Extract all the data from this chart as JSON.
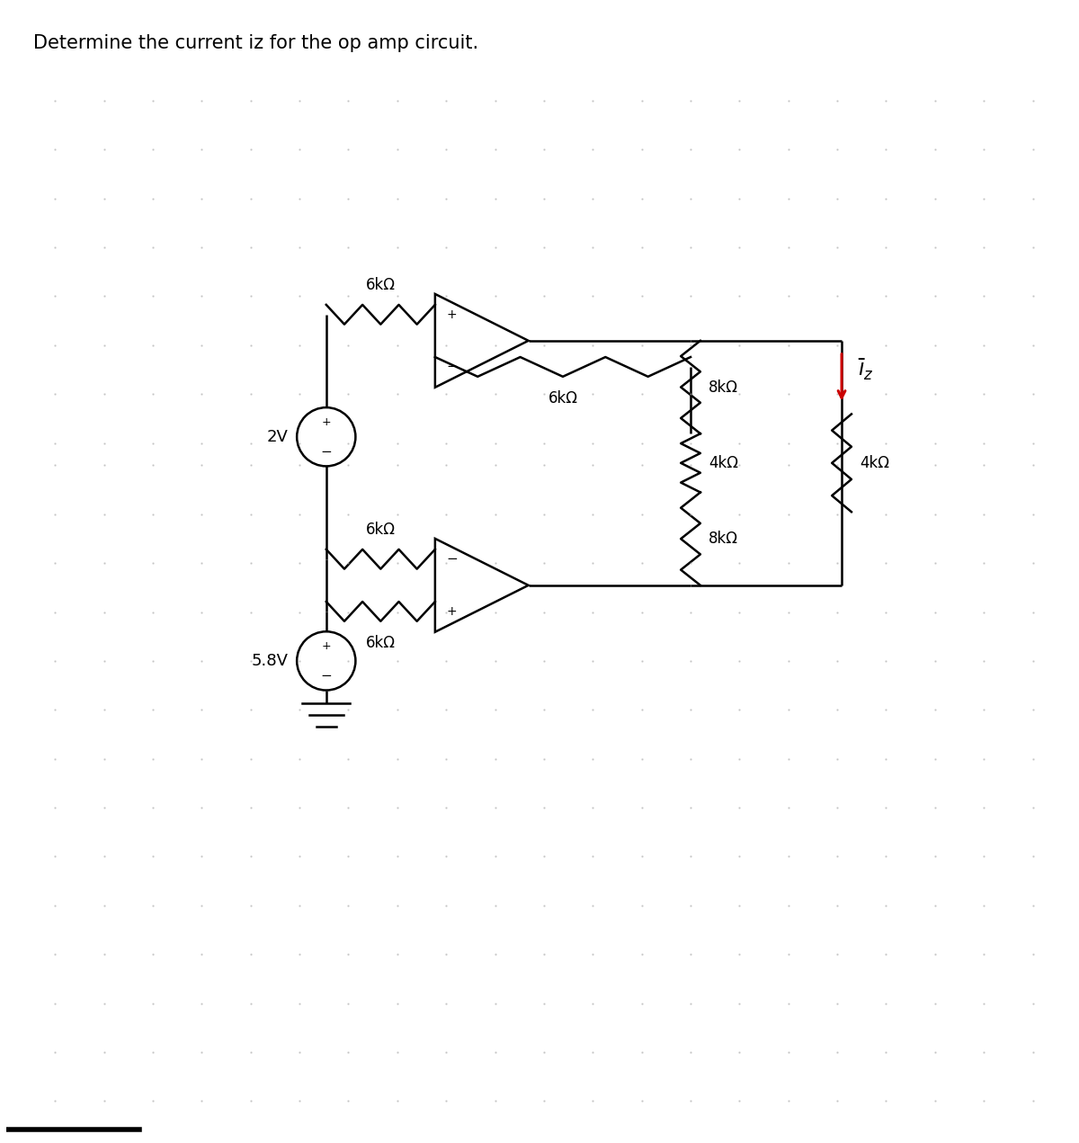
{
  "title": "Determine the current iz for the op amp circuit.",
  "title_fontsize": 15,
  "bg_color": "#ffffff",
  "line_color": "#000000",
  "red_color": "#cc0000",
  "fig_width": 12.0,
  "fig_height": 12.71,
  "labels": {
    "6k_top": "6kΩ",
    "6k_mid": "6kΩ",
    "6k_bot_fb": "6kΩ",
    "6k_bot_in": "6kΩ",
    "8k_top": "8kΩ",
    "4k_mid": "4kΩ",
    "8k_bot": "8kΩ",
    "4k_right": "4kΩ",
    "2V": "2V",
    "5p8V": "5.8V",
    "iz": "iz"
  }
}
